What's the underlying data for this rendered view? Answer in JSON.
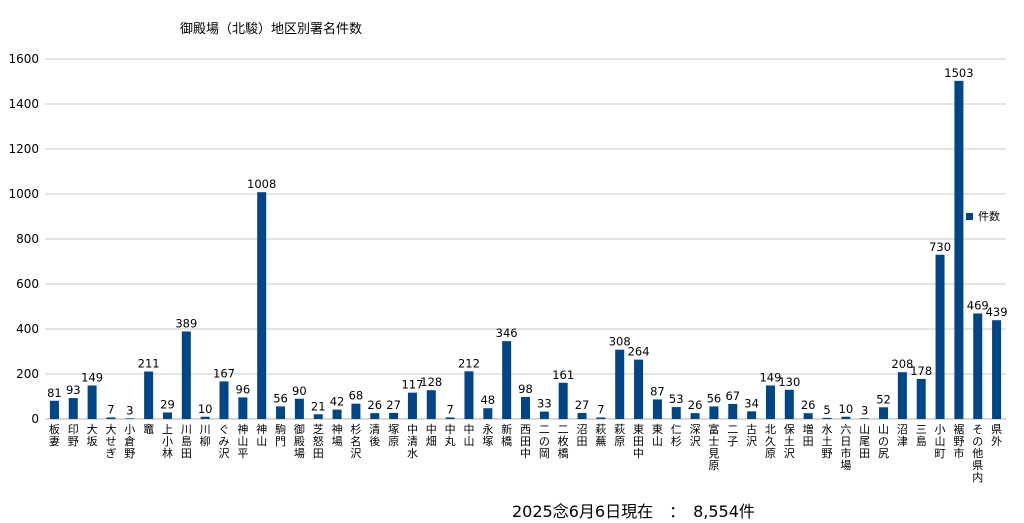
{
  "chart_data": {
    "type": "bar",
    "title": "御殿場（北駿）地区別署名件数",
    "ylim": [
      0,
      1600
    ],
    "yticks": [
      0,
      200,
      400,
      600,
      800,
      1000,
      1200,
      1400,
      1600
    ],
    "grid": true,
    "legend_position": "right",
    "series": [
      {
        "name": "件数",
        "color": "#004586",
        "values": [
          81,
          93,
          149,
          7,
          3,
          211,
          29,
          389,
          10,
          167,
          96,
          1008,
          56,
          90,
          21,
          42,
          68,
          26,
          27,
          117,
          128,
          7,
          212,
          48,
          346,
          98,
          33,
          161,
          27,
          7,
          308,
          264,
          87,
          53,
          26,
          56,
          67,
          34,
          149,
          130,
          26,
          5,
          10,
          3,
          52,
          208,
          178,
          730,
          1503,
          469,
          439
        ]
      }
    ],
    "categories": [
      "板妻",
      "印野",
      "大坂",
      "大せぎ",
      "小倉野",
      "竈",
      "上小林",
      "川島田",
      "川柳",
      "ぐみ沢",
      "神山平",
      "神山",
      "駒門",
      "御殿場",
      "芝怒田",
      "神場",
      "杉名沢",
      "清後",
      "塚原",
      "中清水",
      "中畑",
      "中丸",
      "中山",
      "永塚",
      "新橋",
      "西田中",
      "二の岡",
      "二枚橋",
      "沼田",
      "萩蕪",
      "萩原",
      "東田中",
      "東山",
      "仁杉",
      "深沢",
      "富士見原",
      "二子",
      "古沢",
      "北久原",
      "保土沢",
      "増田",
      "水土野",
      "六日市場",
      "山尾田",
      "山の尻",
      "沼津",
      "三島",
      "小山町",
      "裾野市",
      "その他県内",
      "県外"
    ]
  },
  "footer": {
    "text": "2025念6月6日現在　：　8,554件"
  }
}
